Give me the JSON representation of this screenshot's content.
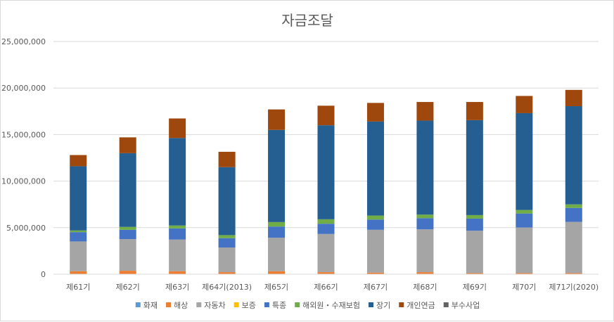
{
  "chart_data": {
    "type": "bar",
    "stacked": true,
    "title": "자금조달",
    "categories": [
      "제61기",
      "제62기",
      "제63기",
      "제64기(2013)",
      "제65기",
      "제66기",
      "제67기",
      "제68기",
      "제69기",
      "제70기",
      "제71기(2020)"
    ],
    "ylim": [
      0,
      25000000
    ],
    "yticks": [
      0,
      5000000,
      10000000,
      15000000,
      20000000,
      25000000
    ],
    "ytick_labels": [
      "0",
      "5,000,000",
      "10,000,000",
      "15,000,000",
      "20,000,000",
      "25,000,000"
    ],
    "grid": true,
    "legend_position": "bottom",
    "series": [
      {
        "name": "화재",
        "color": "#5b9bd5",
        "values": [
          20000,
          20000,
          20000,
          20000,
          20000,
          20000,
          20000,
          20000,
          20000,
          20000,
          20000
        ]
      },
      {
        "name": "해상",
        "color": "#ed7d31",
        "values": [
          300000,
          350000,
          300000,
          200000,
          300000,
          200000,
          150000,
          200000,
          100000,
          100000,
          100000
        ]
      },
      {
        "name": "자동차",
        "color": "#a5a5a5",
        "values": [
          3200000,
          3400000,
          3400000,
          2650000,
          3600000,
          4100000,
          4600000,
          4600000,
          4550000,
          4900000,
          5500000
        ]
      },
      {
        "name": "보증",
        "color": "#ffc000",
        "values": [
          0,
          0,
          0,
          0,
          0,
          0,
          0,
          0,
          0,
          0,
          0
        ]
      },
      {
        "name": "특종",
        "color": "#4472c4",
        "values": [
          1000000,
          1000000,
          1200000,
          1000000,
          1200000,
          1100000,
          1100000,
          1200000,
          1300000,
          1500000,
          1500000
        ]
      },
      {
        "name": "해외원・수재보험",
        "color": "#70ad47",
        "values": [
          180000,
          310000,
          310000,
          330000,
          480000,
          480000,
          430000,
          380000,
          380000,
          380000,
          380000
        ]
      },
      {
        "name": "장기",
        "color": "#255e91",
        "values": [
          6900000,
          7920000,
          9400000,
          7300000,
          9900000,
          10100000,
          10100000,
          10100000,
          10200000,
          10400000,
          10550000
        ]
      },
      {
        "name": "개인연금",
        "color": "#9e480e",
        "values": [
          1200000,
          1700000,
          2100000,
          1650000,
          2200000,
          2100000,
          2000000,
          2000000,
          1950000,
          1850000,
          1750000
        ]
      },
      {
        "name": "부수사업",
        "color": "#636363",
        "values": [
          0,
          0,
          0,
          0,
          0,
          0,
          0,
          0,
          0,
          0,
          0
        ]
      }
    ]
  }
}
